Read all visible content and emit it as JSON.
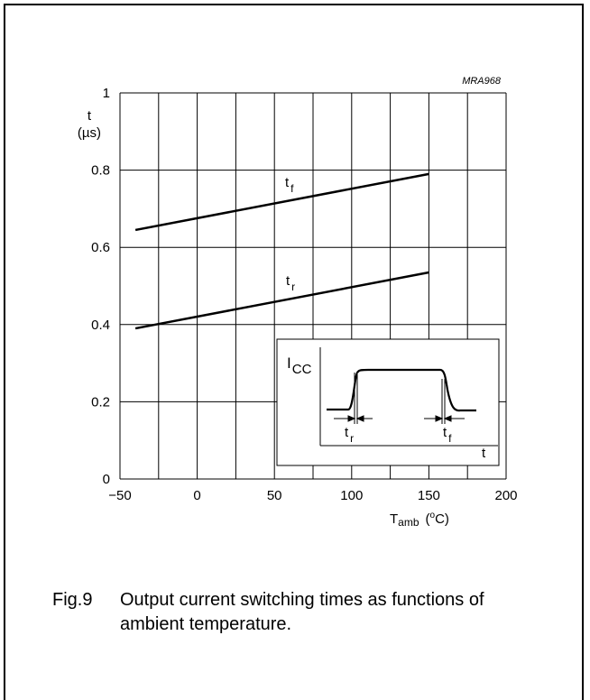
{
  "chart_data": {
    "type": "line",
    "id_label": "MRA968",
    "ylabel_top": "t",
    "ylabel_unit": "(µs)",
    "xlabel_main": "T",
    "xlabel_sub": "amb",
    "xlabel_unit_open": "(",
    "xlabel_unit_sup": "o",
    "xlabel_unit_rest": "C)",
    "xlim": [
      -50,
      200
    ],
    "ylim": [
      0,
      1
    ],
    "x_ticks": [
      -50,
      -25,
      0,
      25,
      50,
      75,
      100,
      125,
      150,
      175,
      200
    ],
    "x_tick_labels": [
      {
        "value": -50,
        "text": "−50"
      },
      {
        "value": 0,
        "text": "0"
      },
      {
        "value": 50,
        "text": "50"
      },
      {
        "value": 100,
        "text": "100"
      },
      {
        "value": 150,
        "text": "150"
      },
      {
        "value": 200,
        "text": "200"
      }
    ],
    "y_ticks": [
      0,
      0.2,
      0.4,
      0.6,
      0.8,
      1
    ],
    "y_tick_labels": [
      {
        "value": 1,
        "text": "1"
      },
      {
        "value": 0.8,
        "text": "0.8"
      },
      {
        "value": 0.6,
        "text": "0.6"
      },
      {
        "value": 0.4,
        "text": "0.4"
      },
      {
        "value": 0.2,
        "text": "0.2"
      },
      {
        "value": 0,
        "text": "0"
      }
    ],
    "series": [
      {
        "name": "t",
        "sub": "f",
        "x": [
          -40,
          150
        ],
        "y": [
          0.645,
          0.79
        ]
      },
      {
        "name": "t",
        "sub": "r",
        "x": [
          -40,
          150
        ],
        "y": [
          0.39,
          0.535
        ]
      }
    ],
    "inset": {
      "ylabel": "I",
      "ylabel_sub": "CC",
      "xlabel": "t",
      "rise_label": "t",
      "rise_sub": "r",
      "fall_label": "t",
      "fall_sub": "f"
    }
  },
  "caption": {
    "number": "Fig.9",
    "text": "Output current switching times as functions of ambient temperature."
  }
}
